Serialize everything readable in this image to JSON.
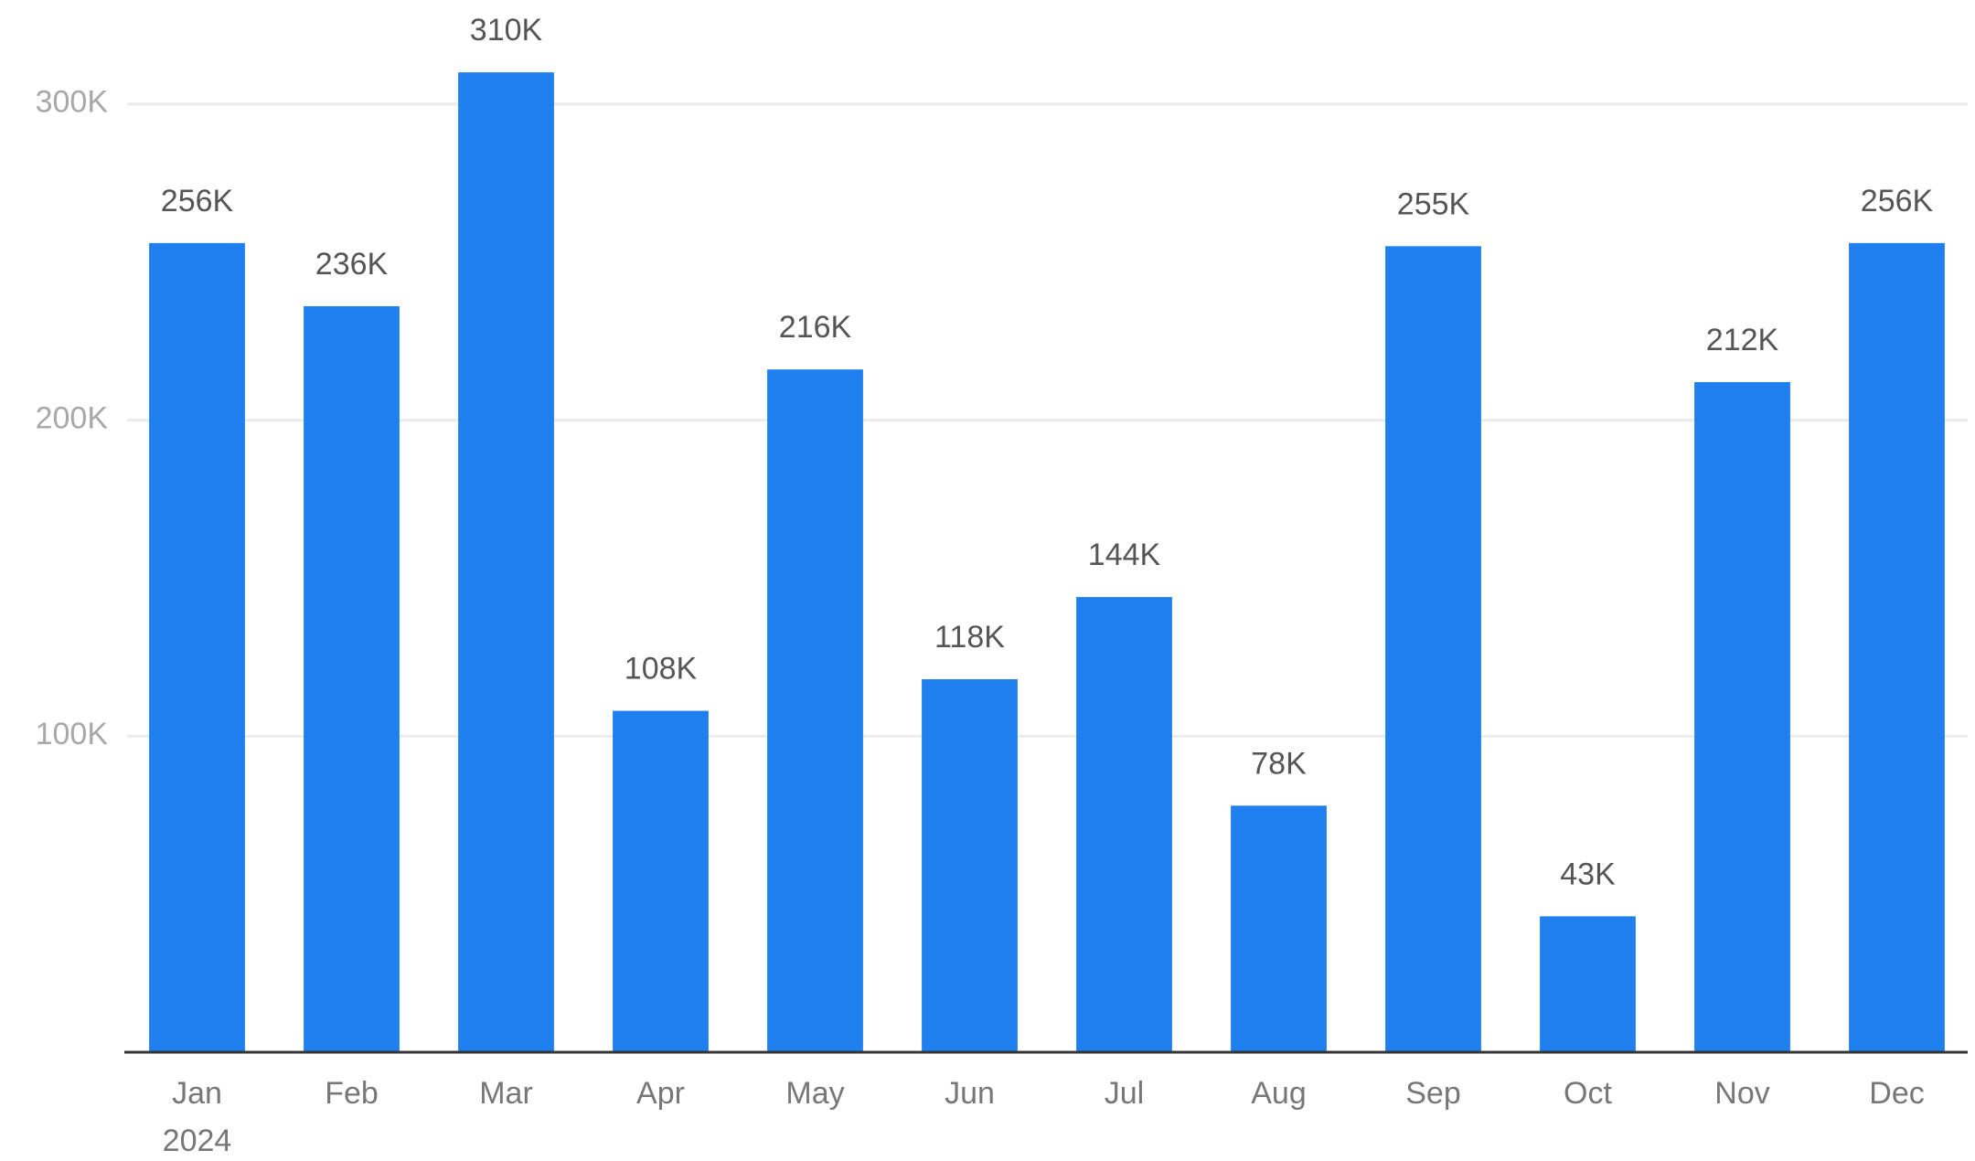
{
  "chart_data": {
    "type": "bar",
    "categories": [
      "Jan",
      "Feb",
      "Mar",
      "Apr",
      "May",
      "Jun",
      "Jul",
      "Aug",
      "Sep",
      "Oct",
      "Nov",
      "Dec"
    ],
    "year": "2024",
    "values": [
      256000,
      236000,
      310000,
      108000,
      216000,
      118000,
      144000,
      78000,
      255000,
      43000,
      212000,
      256000
    ],
    "value_labels": [
      "256K",
      "236K",
      "310K",
      "108K",
      "216K",
      "118K",
      "144K",
      "78K",
      "255K",
      "43K",
      "212K",
      "256K"
    ],
    "color": "#1f7fef",
    "ylim": [
      0,
      330000
    ],
    "yticks": [
      {
        "value": 100000,
        "label": "100K"
      },
      {
        "value": 200000,
        "label": "200K"
      },
      {
        "value": 300000,
        "label": "300K"
      }
    ],
    "grid": true
  }
}
